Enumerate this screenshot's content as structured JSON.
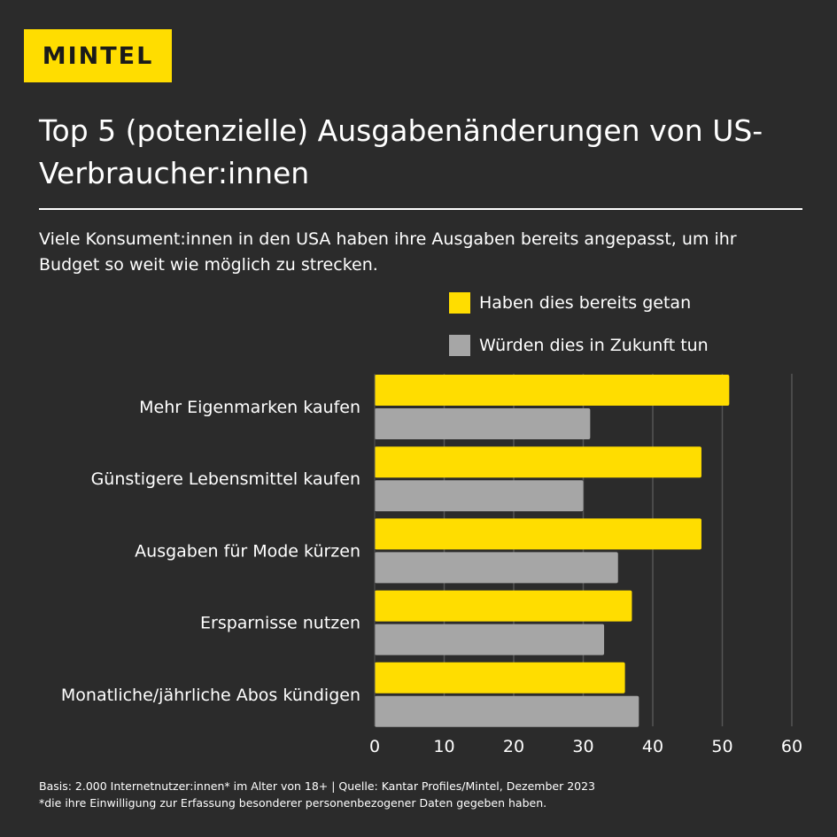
{
  "brand": {
    "logo": "MINTEL",
    "accent": "#ffdd00",
    "secondary": "#a6a6a6",
    "background": "#2b2b2b"
  },
  "header": {
    "title": "Top 5 (potenzielle) Ausgabenänderungen von US-Verbraucher:innen",
    "subtitle": "Viele Konsument:innen in den USA haben ihre Ausgaben bereits angepasst, um ihr Budget so weit wie möglich zu strecken."
  },
  "chart_data": {
    "type": "bar",
    "orientation": "horizontal",
    "categories": [
      "Mehr Eigenmarken kaufen",
      "Günstigere Lebensmittel kaufen",
      "Ausgaben für Mode kürzen",
      "Ersparnisse nutzen",
      "Monatliche/jährliche Abos kündigen"
    ],
    "series": [
      {
        "name": "Haben dies bereits getan",
        "color": "#ffdd00",
        "values": [
          51,
          47,
          47,
          37,
          36
        ]
      },
      {
        "name": "Würden dies in Zukunft tun",
        "color": "#a6a6a6",
        "values": [
          31,
          30,
          35,
          33,
          38
        ]
      }
    ],
    "xlim": [
      0,
      60
    ],
    "xticks": [
      "0",
      "10",
      "20",
      "30",
      "40",
      "50",
      "60"
    ],
    "grid": true,
    "legend": "top-right"
  },
  "footer": {
    "source": "Basis: 2.000 Internetnutzer:innen* im Alter von 18+ | Quelle: Kantar Profiles/Mintel, Dezember 2023",
    "note": "*die ihre Einwilligung zur Erfassung besonderer personenbezogener Daten gegeben haben."
  }
}
